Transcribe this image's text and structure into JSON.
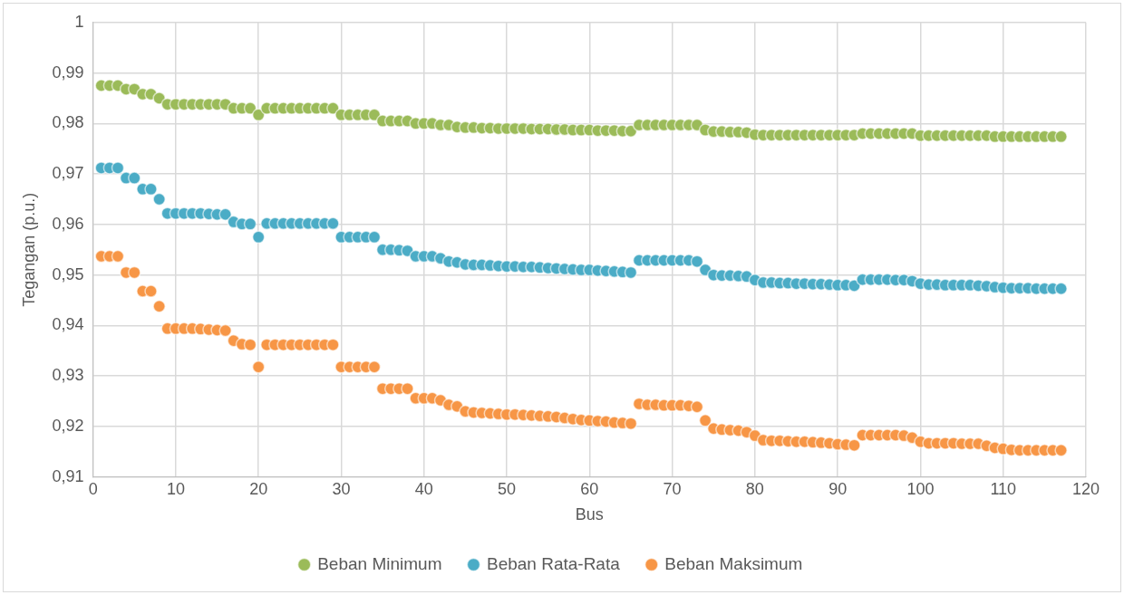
{
  "chart_data": {
    "type": "scatter",
    "xlabel": "Bus",
    "ylabel": "Tegangan (p.u.)",
    "x": [
      1,
      2,
      3,
      4,
      5,
      6,
      7,
      8,
      9,
      10,
      11,
      12,
      13,
      14,
      15,
      16,
      17,
      18,
      19,
      20,
      21,
      22,
      23,
      24,
      25,
      26,
      27,
      28,
      29,
      30,
      31,
      32,
      33,
      34,
      35,
      36,
      37,
      38,
      39,
      40,
      41,
      42,
      43,
      44,
      45,
      46,
      47,
      48,
      49,
      50,
      51,
      52,
      53,
      54,
      55,
      56,
      57,
      58,
      59,
      60,
      61,
      62,
      63,
      64,
      65,
      66,
      67,
      68,
      69,
      70,
      71,
      72,
      73,
      74,
      75,
      76,
      77,
      78,
      79,
      80,
      81,
      82,
      83,
      84,
      85,
      86,
      87,
      88,
      89,
      90,
      91,
      92,
      93,
      94,
      95,
      96,
      97,
      98,
      99,
      100,
      101,
      102,
      103,
      104,
      105,
      106,
      107,
      108,
      109,
      110,
      111,
      112,
      113,
      114,
      115,
      116,
      117
    ],
    "series": [
      {
        "name": "Beban Minimum",
        "color": "#9bbb59",
        "values": [
          0.9875,
          0.9875,
          0.9875,
          0.9868,
          0.9868,
          0.9858,
          0.9858,
          0.985,
          0.9838,
          0.9838,
          0.9838,
          0.9838,
          0.9838,
          0.9838,
          0.9838,
          0.9838,
          0.983,
          0.983,
          0.983,
          0.9817,
          0.983,
          0.983,
          0.983,
          0.983,
          0.983,
          0.983,
          0.983,
          0.983,
          0.983,
          0.9817,
          0.9817,
          0.9817,
          0.9817,
          0.9817,
          0.9805,
          0.9805,
          0.9805,
          0.9805,
          0.98,
          0.98,
          0.98,
          0.9797,
          0.9797,
          0.9793,
          0.9792,
          0.9792,
          0.9791,
          0.9791,
          0.979,
          0.979,
          0.979,
          0.979,
          0.9789,
          0.9789,
          0.9789,
          0.9788,
          0.9788,
          0.9787,
          0.9787,
          0.9787,
          0.9786,
          0.9786,
          0.9786,
          0.9785,
          0.9785,
          0.9797,
          0.9797,
          0.9797,
          0.9797,
          0.9797,
          0.9797,
          0.9797,
          0.9797,
          0.9787,
          0.9784,
          0.9784,
          0.9783,
          0.9783,
          0.9782,
          0.9778,
          0.9777,
          0.9777,
          0.9777,
          0.9777,
          0.9777,
          0.9777,
          0.9777,
          0.9777,
          0.9777,
          0.9777,
          0.9777,
          0.9777,
          0.978,
          0.978,
          0.978,
          0.978,
          0.978,
          0.978,
          0.978,
          0.9776,
          0.9776,
          0.9776,
          0.9776,
          0.9776,
          0.9776,
          0.9776,
          0.9776,
          0.9776,
          0.9774,
          0.9774,
          0.9774,
          0.9774,
          0.9774,
          0.9774,
          0.9774,
          0.9774,
          0.9774
        ]
      },
      {
        "name": "Beban Rata-Rata",
        "color": "#4bacc6",
        "values": [
          0.9712,
          0.9712,
          0.9712,
          0.9692,
          0.9692,
          0.967,
          0.967,
          0.965,
          0.9622,
          0.9622,
          0.9622,
          0.9622,
          0.9622,
          0.9621,
          0.962,
          0.962,
          0.9605,
          0.9601,
          0.9601,
          0.9575,
          0.9602,
          0.9602,
          0.9602,
          0.9602,
          0.9602,
          0.9602,
          0.9602,
          0.9602,
          0.9602,
          0.9575,
          0.9575,
          0.9575,
          0.9575,
          0.9575,
          0.955,
          0.955,
          0.9549,
          0.9548,
          0.9537,
          0.9537,
          0.9537,
          0.9533,
          0.9527,
          0.9525,
          0.9521,
          0.952,
          0.952,
          0.9519,
          0.9518,
          0.9517,
          0.9517,
          0.9516,
          0.9516,
          0.9515,
          0.9514,
          0.9513,
          0.9512,
          0.9511,
          0.951,
          0.951,
          0.9509,
          0.9508,
          0.9507,
          0.9506,
          0.9505,
          0.9529,
          0.9529,
          0.9529,
          0.9529,
          0.9529,
          0.9529,
          0.9529,
          0.9527,
          0.951,
          0.95,
          0.9499,
          0.9499,
          0.9498,
          0.9497,
          0.949,
          0.9485,
          0.9485,
          0.9484,
          0.9484,
          0.9483,
          0.9483,
          0.9482,
          0.9482,
          0.9481,
          0.948,
          0.948,
          0.9479,
          0.9491,
          0.9491,
          0.9491,
          0.9491,
          0.949,
          0.949,
          0.9488,
          0.9483,
          0.9481,
          0.9481,
          0.948,
          0.948,
          0.948,
          0.948,
          0.9479,
          0.9478,
          0.9476,
          0.9475,
          0.9474,
          0.9474,
          0.9474,
          0.9473,
          0.9473,
          0.9473,
          0.9473
        ]
      },
      {
        "name": "Beban Maksimum",
        "color": "#f79646",
        "values": [
          0.9537,
          0.9537,
          0.9537,
          0.9505,
          0.9505,
          0.9468,
          0.9468,
          0.9438,
          0.9394,
          0.9394,
          0.9394,
          0.9394,
          0.9393,
          0.9392,
          0.9391,
          0.939,
          0.937,
          0.9363,
          0.9362,
          0.9318,
          0.9362,
          0.9362,
          0.9362,
          0.9362,
          0.9362,
          0.9362,
          0.9362,
          0.9362,
          0.9362,
          0.9318,
          0.9318,
          0.9318,
          0.9318,
          0.9318,
          0.9275,
          0.9275,
          0.9275,
          0.9275,
          0.9256,
          0.9256,
          0.9256,
          0.9252,
          0.9243,
          0.924,
          0.923,
          0.9228,
          0.9227,
          0.9226,
          0.9225,
          0.9224,
          0.9224,
          0.9223,
          0.9222,
          0.9221,
          0.922,
          0.9219,
          0.9217,
          0.9215,
          0.9213,
          0.9212,
          0.9211,
          0.921,
          0.9208,
          0.9207,
          0.9206,
          0.9245,
          0.9243,
          0.9243,
          0.9242,
          0.9242,
          0.9242,
          0.9241,
          0.9239,
          0.9212,
          0.9196,
          0.9194,
          0.9193,
          0.9192,
          0.9189,
          0.9182,
          0.9173,
          0.9172,
          0.9172,
          0.9171,
          0.917,
          0.917,
          0.9169,
          0.9168,
          0.9167,
          0.9165,
          0.9164,
          0.9163,
          0.9183,
          0.9183,
          0.9183,
          0.9183,
          0.9183,
          0.9182,
          0.9178,
          0.917,
          0.9167,
          0.9167,
          0.9167,
          0.9167,
          0.9166,
          0.9166,
          0.9166,
          0.9162,
          0.9158,
          0.9156,
          0.9154,
          0.9153,
          0.9153,
          0.9153,
          0.9153,
          0.9153,
          0.9153
        ]
      }
    ],
    "xlim": [
      0,
      120
    ],
    "xticks": [
      0,
      10,
      20,
      30,
      40,
      50,
      60,
      70,
      80,
      90,
      100,
      110,
      120
    ],
    "ylim": [
      0.91,
      1
    ],
    "yticks": [
      {
        "value": 0.91,
        "label": "0,91"
      },
      {
        "value": 0.92,
        "label": "0,92"
      },
      {
        "value": 0.93,
        "label": "0,93"
      },
      {
        "value": 0.94,
        "label": "0,94"
      },
      {
        "value": 0.95,
        "label": "0,95"
      },
      {
        "value": 0.96,
        "label": "0,96"
      },
      {
        "value": 0.97,
        "label": "0,97"
      },
      {
        "value": 0.98,
        "label": "0,98"
      },
      {
        "value": 0.99,
        "label": "0,99"
      },
      {
        "value": 1,
        "label": "1"
      }
    ],
    "grid": true,
    "legend": "bottom",
    "marker": "circle"
  }
}
